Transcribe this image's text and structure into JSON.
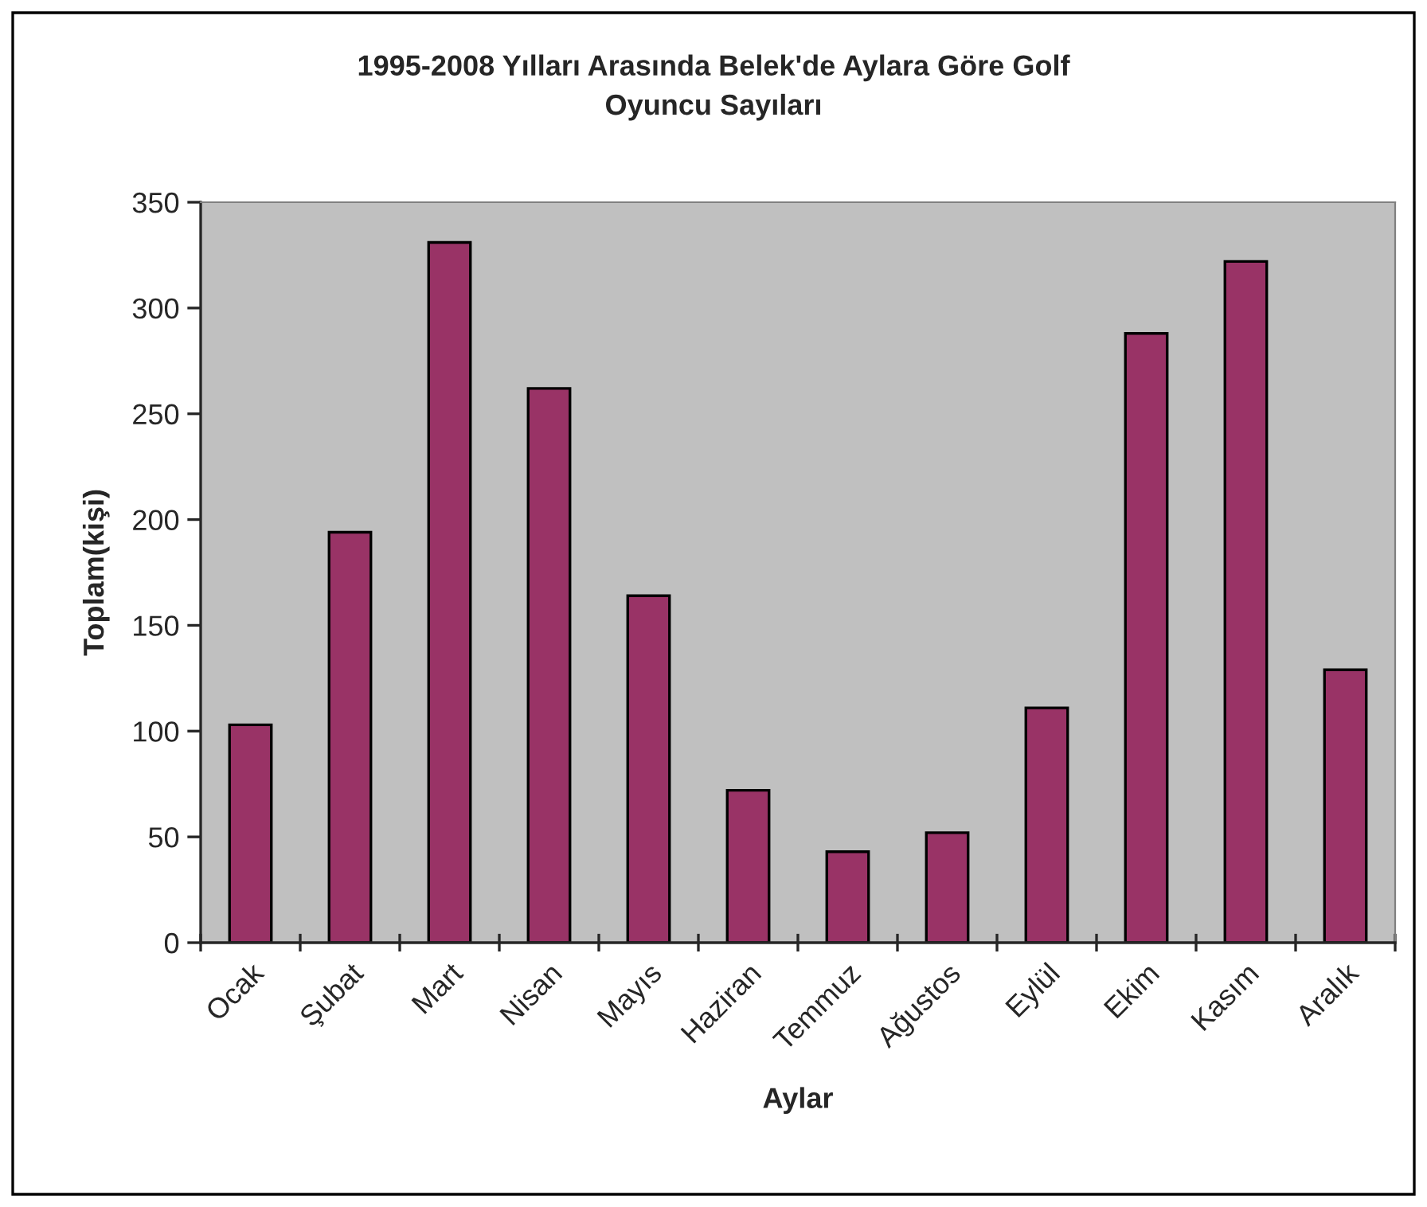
{
  "chart_data": {
    "type": "bar",
    "title": "1995-2008 Yılları Arasında Belek'de Aylara Göre Golf\nOyuncu Sayıları",
    "xlabel": "Aylar",
    "ylabel": "Toplam(kişi)",
    "categories": [
      "Ocak",
      "Şubat",
      "Mart",
      "Nisan",
      "Mayıs",
      "Haziran",
      "Temmuz",
      "Ağustos",
      "Eylül",
      "Ekim",
      "Kasım",
      "Aralık"
    ],
    "values": [
      103,
      194,
      331,
      262,
      164,
      72,
      43,
      52,
      111,
      288,
      322,
      129
    ],
    "color": "#993366",
    "ylim": [
      0,
      350
    ],
    "yticks": [
      0,
      50,
      100,
      150,
      200,
      250,
      300,
      350
    ],
    "grid": false,
    "legend": false
  }
}
